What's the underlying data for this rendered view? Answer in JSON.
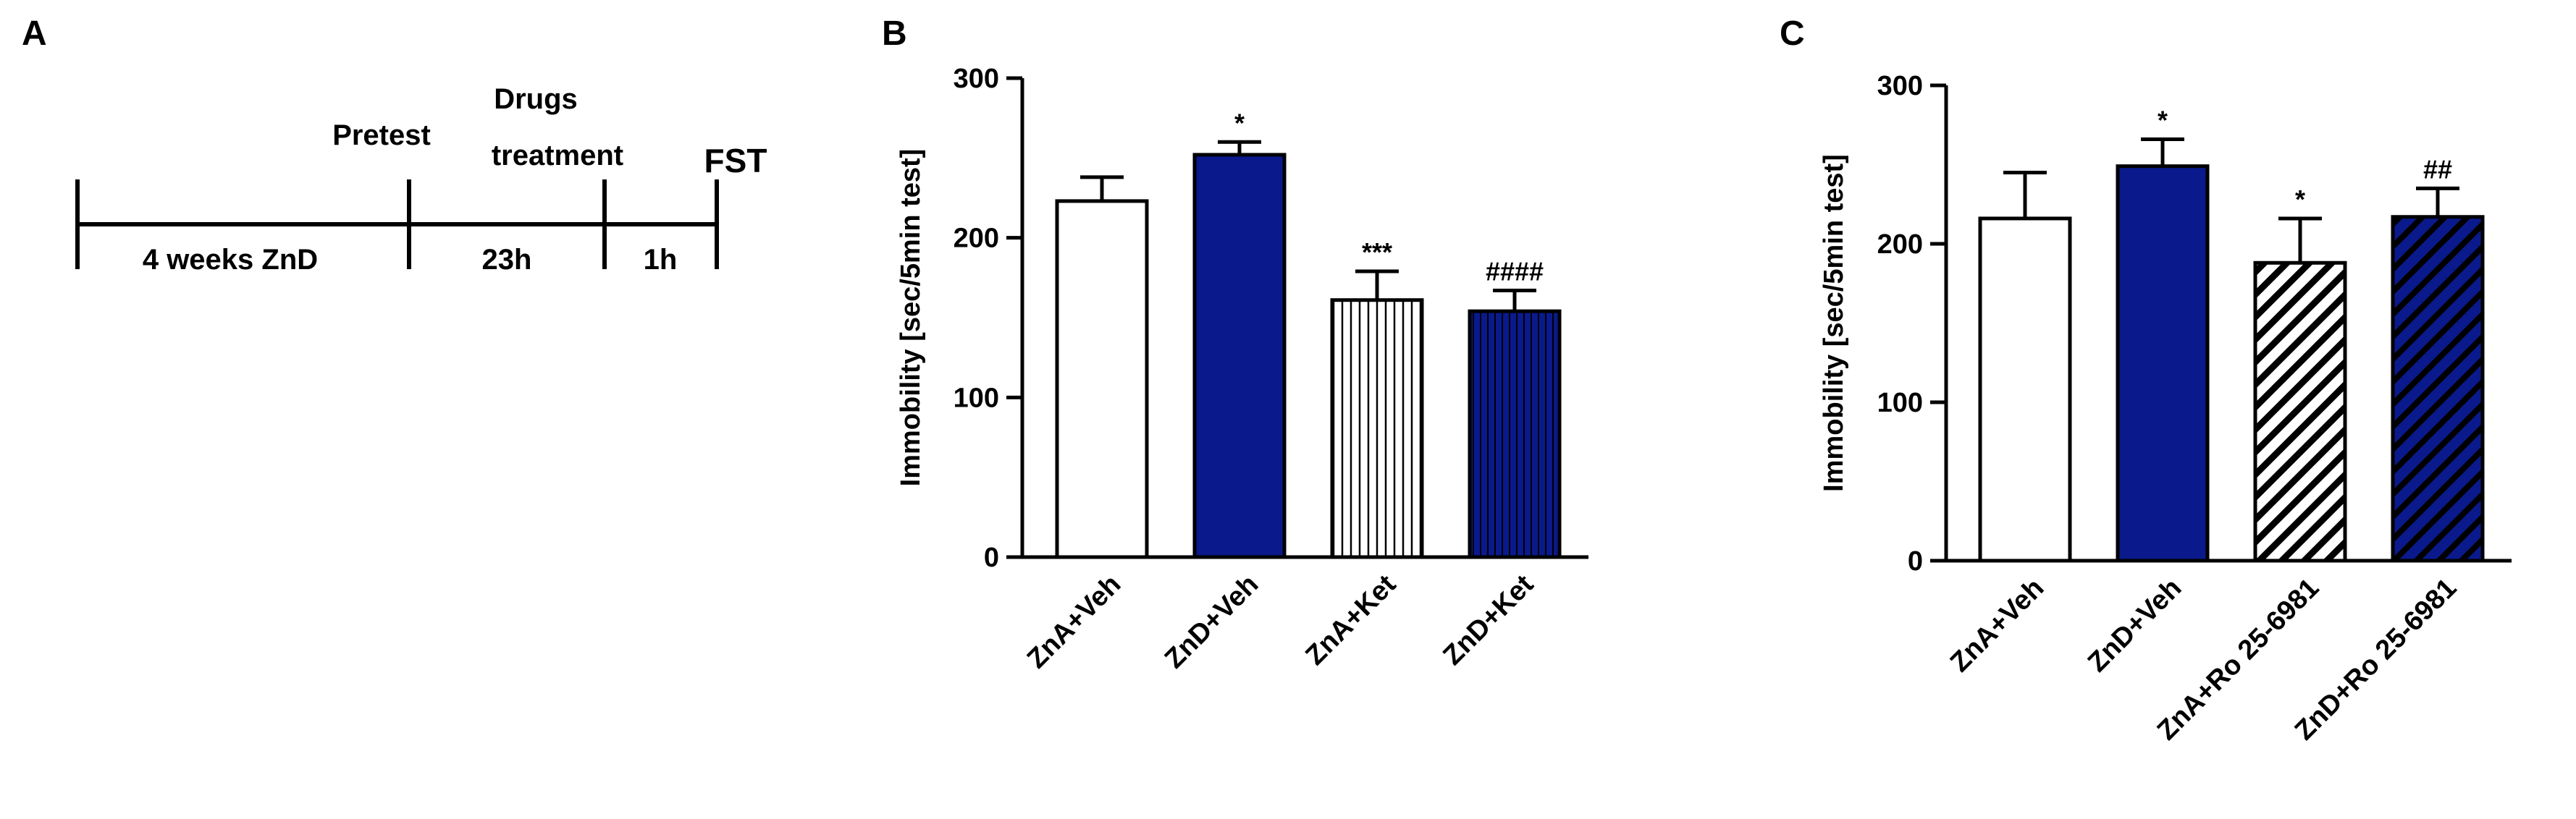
{
  "panel_labels": {
    "a": "A",
    "b": "B",
    "c": "C"
  },
  "timeline": {
    "segments": [
      "4 weeks ZnD",
      "23h",
      "1h"
    ],
    "events": {
      "pretest": "Pretest",
      "drugs_line1": "Drugs",
      "drugs_line2": "treatment",
      "end": "FST"
    }
  },
  "colors": {
    "navy": "#0a1a8c",
    "black": "#000000",
    "white": "#ffffff"
  },
  "chart_data": [
    {
      "type": "bar",
      "panel": "B",
      "title": "",
      "ylabel": "Immobility [sec/5min test]",
      "xlabel": "",
      "ylim": [
        0,
        300
      ],
      "yticks": [
        0,
        100,
        200,
        300
      ],
      "grid": false,
      "categories": [
        "ZnA+Veh",
        "ZnD+Veh",
        "ZnA+Ket",
        "ZnD+Ket"
      ],
      "values": [
        223,
        252,
        161,
        154
      ],
      "errors": [
        15,
        8,
        18,
        13
      ],
      "annotations": [
        "",
        "*",
        "***",
        "####"
      ],
      "fills": [
        "white",
        "navy",
        "vertical-stripes-white",
        "vertical-stripes-navy"
      ]
    },
    {
      "type": "bar",
      "panel": "C",
      "title": "",
      "ylabel": "Immobility [sec/5min test]",
      "xlabel": "",
      "ylim": [
        0,
        300
      ],
      "yticks": [
        0,
        100,
        200,
        300
      ],
      "grid": false,
      "categories": [
        "ZnA+Veh",
        "ZnD+Veh",
        "ZnA+Ro 25-6981",
        "ZnD+Ro 25-6981"
      ],
      "values": [
        216,
        249,
        188,
        217
      ],
      "errors": [
        29,
        17,
        28,
        18
      ],
      "annotations": [
        "",
        "*",
        "*",
        "##"
      ],
      "fills": [
        "white",
        "navy",
        "diagonal-stripes-white",
        "diagonal-stripes-navy"
      ]
    }
  ]
}
